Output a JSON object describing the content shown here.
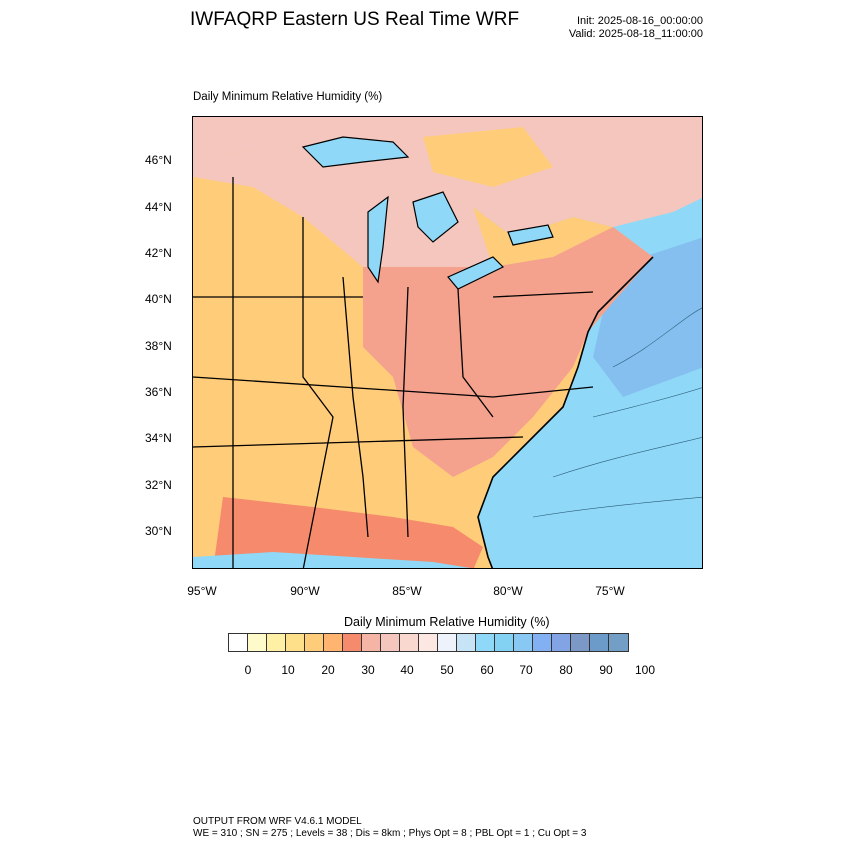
{
  "header": {
    "title": "IWFAQRP Eastern US Real Time WRF",
    "init": "Init: 2025-08-16_00:00:00",
    "valid": "Valid: 2025-08-18_11:00:00"
  },
  "plot": {
    "label": "Daily Minimum Relative Humidity   (%)"
  },
  "axes": {
    "lat_labels": [
      "46°N",
      "44°N",
      "42°N",
      "40°N",
      "38°N",
      "36°N",
      "34°N",
      "32°N",
      "30°N"
    ],
    "lon_labels": [
      "95°W",
      "90°W",
      "85°W",
      "80°W",
      "75°W"
    ]
  },
  "colorbar": {
    "title": "Daily Minimum Relative Humidity  (%)",
    "tick_labels": [
      "0",
      "10",
      "20",
      "30",
      "40",
      "50",
      "60",
      "70",
      "80",
      "90",
      "100"
    ],
    "colors": [
      "#ffffff",
      "#fffac9",
      "#fff0a6",
      "#ffe08a",
      "#ffcc7a",
      "#ffb46f",
      "#f68a6c",
      "#f4b4a6",
      "#f5c6bd",
      "#f9d8d0",
      "#fce7e2",
      "#eef3fb",
      "#c6e4f6",
      "#8fd8f7",
      "#84d2f3",
      "#8ac8f4",
      "#83b0f2",
      "#82a4e4",
      "#7c98c6",
      "#6d9bc9",
      "#739fc6"
    ]
  },
  "footer": {
    "line1": "OUTPUT FROM WRF V4.6.1 MODEL",
    "line2": "WE = 310 ; SN = 275 ; Levels = 38 ; Dis = 8km ; Phys Opt = 8 ; PBL Opt = 1 ; Cu Opt = 3"
  }
}
